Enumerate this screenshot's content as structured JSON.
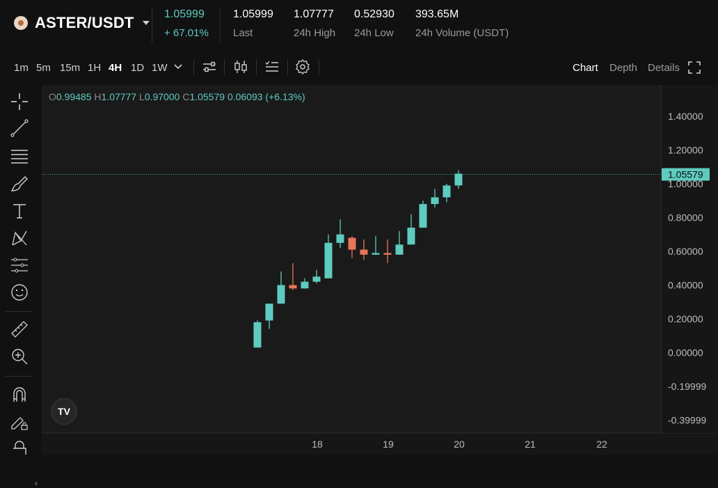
{
  "header": {
    "pair": "ASTER/USDT",
    "price": "1.05999",
    "change": "+ 67.01%",
    "stats": [
      {
        "value": "1.05999",
        "label": "Last"
      },
      {
        "value": "1.07777",
        "label": "24h High"
      },
      {
        "value": "0.52930",
        "label": "24h Low"
      },
      {
        "value": "393.65M",
        "label": "24h Volume (USDT)"
      }
    ]
  },
  "toolbar": {
    "timeframes": [
      "1m",
      "5m",
      "15m",
      "1H",
      "4H",
      "1D",
      "1W"
    ],
    "active_timeframe": "4H",
    "views": [
      "Chart",
      "Depth",
      "Details"
    ],
    "active_view": "Chart"
  },
  "ohlc": {
    "o_label": "O",
    "o": "0.99485",
    "h_label": "H",
    "h": "1.07777",
    "l_label": "L",
    "l": "0.97000",
    "c_label": "C",
    "c": "1.05579",
    "change": "0.06093 (+6.13%)"
  },
  "badge": {
    "logo": "TV"
  },
  "colors": {
    "up": "#5ecbbf",
    "down": "#e8765a",
    "bg": "#1a1a1a"
  },
  "chart_data": {
    "type": "candlestick",
    "x_ticks": [
      "18",
      "19",
      "20",
      "21",
      "22"
    ],
    "y_ticks": [
      "1.40000",
      "1.20000",
      "1.00000",
      "0.80000",
      "0.60000",
      "0.40000",
      "0.20000",
      "0.00000",
      "-0.19999",
      "-0.39999"
    ],
    "y_range": [
      -0.45,
      1.55
    ],
    "current_price": "1.05579",
    "candles": [
      {
        "o": 0.03,
        "h": 0.19,
        "l": 0.03,
        "c": 0.18
      },
      {
        "o": 0.19,
        "h": 0.29,
        "l": 0.14,
        "c": 0.29
      },
      {
        "o": 0.29,
        "h": 0.48,
        "l": 0.29,
        "c": 0.4
      },
      {
        "o": 0.4,
        "h": 0.53,
        "l": 0.37,
        "c": 0.38
      },
      {
        "o": 0.38,
        "h": 0.44,
        "l": 0.38,
        "c": 0.42
      },
      {
        "o": 0.42,
        "h": 0.49,
        "l": 0.41,
        "c": 0.45
      },
      {
        "o": 0.44,
        "h": 0.7,
        "l": 0.44,
        "c": 0.65
      },
      {
        "o": 0.65,
        "h": 0.79,
        "l": 0.62,
        "c": 0.7
      },
      {
        "o": 0.68,
        "h": 0.69,
        "l": 0.56,
        "c": 0.61
      },
      {
        "o": 0.61,
        "h": 0.67,
        "l": 0.55,
        "c": 0.58
      },
      {
        "o": 0.58,
        "h": 0.69,
        "l": 0.58,
        "c": 0.59
      },
      {
        "o": 0.59,
        "h": 0.67,
        "l": 0.53,
        "c": 0.58
      },
      {
        "o": 0.58,
        "h": 0.72,
        "l": 0.58,
        "c": 0.64
      },
      {
        "o": 0.64,
        "h": 0.82,
        "l": 0.64,
        "c": 0.74
      },
      {
        "o": 0.74,
        "h": 0.9,
        "l": 0.74,
        "c": 0.88
      },
      {
        "o": 0.88,
        "h": 0.97,
        "l": 0.86,
        "c": 0.92
      },
      {
        "o": 0.92,
        "h": 1.0,
        "l": 0.89,
        "c": 0.99
      },
      {
        "o": 0.99,
        "h": 1.08,
        "l": 0.97,
        "c": 1.06
      }
    ]
  }
}
